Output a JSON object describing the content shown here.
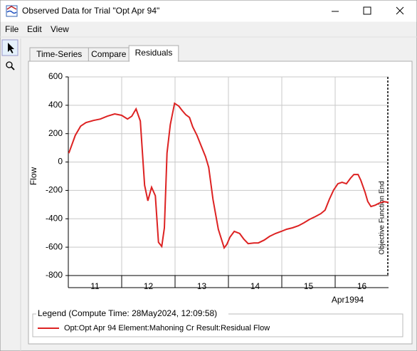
{
  "window": {
    "title": "Observed Data for Trial \"Opt Apr 94\""
  },
  "menu": [
    "File",
    "Edit",
    "View"
  ],
  "tabs": [
    "Time-Series",
    "Compare",
    "Residuals"
  ],
  "active_tab": 2,
  "chart_data": {
    "type": "line",
    "y_label": "Flow",
    "x_caption": "Apr1994",
    "annotation": "Objective Function End",
    "legend_title": "Legend (Compute Time: 28May2024, 12:09:58)",
    "xlim": [
      11,
      17
    ],
    "ylim": [
      -800,
      600
    ],
    "yticks": [
      -800,
      -600,
      -400,
      -200,
      0,
      200,
      400,
      600
    ],
    "xticks": [
      {
        "value": 11.5,
        "label": "11"
      },
      {
        "value": 12.5,
        "label": "12"
      },
      {
        "value": 13.5,
        "label": "13"
      },
      {
        "value": 14.5,
        "label": "14"
      },
      {
        "value": 15.5,
        "label": "15"
      },
      {
        "value": 16.5,
        "label": "16"
      }
    ],
    "xgrid": [
      12,
      13,
      14,
      15,
      16
    ],
    "grid": true,
    "x": [
      11.01,
      11.13,
      11.23,
      11.33,
      11.47,
      11.6,
      11.73,
      11.87,
      12.0,
      12.11,
      12.19,
      12.27,
      12.35,
      12.43,
      12.49,
      12.56,
      12.63,
      12.69,
      12.75,
      12.8,
      12.85,
      12.91,
      12.99,
      13.07,
      13.13,
      13.2,
      13.27,
      13.33,
      13.41,
      13.49,
      13.57,
      13.63,
      13.71,
      13.81,
      13.92,
      13.97,
      14.03,
      14.11,
      14.21,
      14.29,
      14.37,
      14.48,
      14.56,
      14.67,
      14.77,
      14.88,
      14.99,
      15.09,
      15.2,
      15.31,
      15.41,
      15.52,
      15.63,
      15.73,
      15.81,
      15.89,
      15.97,
      16.05,
      16.13,
      16.21,
      16.29,
      16.35,
      16.43,
      16.48,
      16.56,
      16.61,
      16.67,
      16.75,
      16.83,
      16.91,
      17.0
    ],
    "series": [
      {
        "name": "Opt:Opt Apr 94 Element:Mahoning Cr Result:Residual Flow",
        "color": "#dd2222",
        "values": [
          62,
          188,
          253,
          278,
          293,
          303,
          323,
          339,
          329,
          303,
          323,
          374,
          289,
          -163,
          -273,
          -178,
          -238,
          -565,
          -595,
          -464,
          63,
          263,
          414,
          394,
          364,
          334,
          314,
          248,
          188,
          113,
          38,
          -38,
          -263,
          -474,
          -605,
          -580,
          -529,
          -489,
          -504,
          -544,
          -575,
          -570,
          -570,
          -550,
          -524,
          -504,
          -489,
          -474,
          -464,
          -449,
          -429,
          -404,
          -384,
          -364,
          -339,
          -263,
          -198,
          -153,
          -143,
          -153,
          -113,
          -88,
          -88,
          -128,
          -213,
          -278,
          -314,
          -304,
          -289,
          -279,
          -284
        ]
      }
    ]
  }
}
